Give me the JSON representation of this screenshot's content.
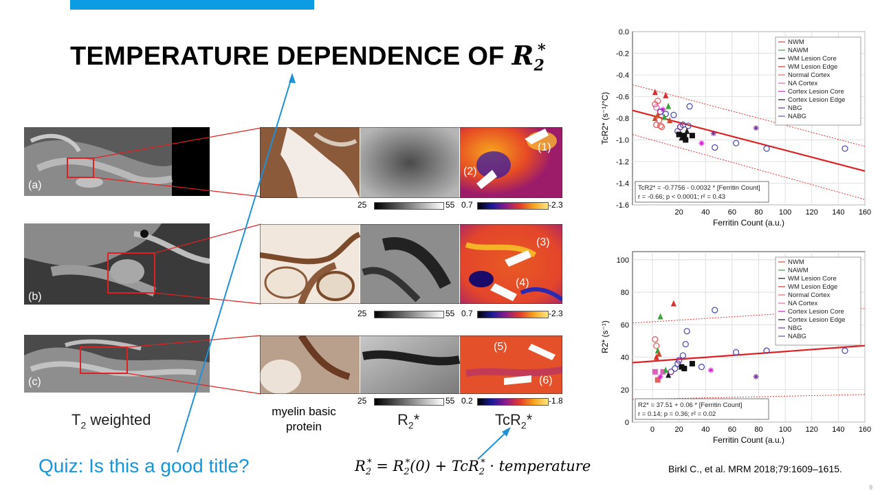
{
  "slide": {
    "title_text": "TEMPERATURE DEPENDENCE OF",
    "title_symbol": "R",
    "title_sub": "2",
    "title_sup": "*",
    "quiz": "Quiz: Is this a good title?",
    "citation": "Birkl C., et al. MRM 2018;79:1609–1615.",
    "page_number": "9",
    "formula": {
      "lhs": "R",
      "lhs_sub": "2",
      "lhs_sup": "*",
      "eq": " = ",
      "r0": "R",
      "r0_sub": "2",
      "r0_sup": "*",
      "r0_arg": "(0) + ",
      "tc": "TcR",
      "tc_sub": "2",
      "tc_sup": "*",
      "tail": " · temperature"
    }
  },
  "figure": {
    "row_labels": [
      "(a)",
      "(b)",
      "(c)"
    ],
    "col_t2": "T",
    "col_t2_sub": "2",
    "col_t2_rest": " weighted",
    "col_mbp": [
      "myelin basic",
      "protein"
    ],
    "col_r2": "R",
    "col_r2_sub": "2",
    "col_r2_sup": "*",
    "col_tcr2": "TcR",
    "col_tcr2_sub": "2",
    "col_tcr2_sup": "*",
    "arrow_labels": [
      "(1)",
      "(2)",
      "(3)",
      "(4)",
      "(5)",
      "(6)"
    ],
    "scales": [
      {
        "gray_min": "25",
        "gray_max": "55",
        "color_min": "0.7",
        "color_max": "-2.3"
      },
      {
        "gray_min": "25",
        "gray_max": "55",
        "color_min": "0.7",
        "color_max": "-2.3"
      },
      {
        "gray_min": "25",
        "gray_max": "55",
        "color_min": "0.2",
        "color_max": "-1.8"
      }
    ]
  },
  "chart_data": [
    {
      "type": "scatter",
      "title": "",
      "xlabel": "Ferritin Count (a.u.)",
      "ylabel": "TcR2* (s⁻¹/°C)",
      "xlim": [
        -15,
        160
      ],
      "ylim": [
        -1.6,
        0.0
      ],
      "xticks": [
        "20",
        "40",
        "60",
        "80",
        "100",
        "120",
        "140",
        "160"
      ],
      "yticks": [
        "0.0",
        "-0.2",
        "-0.4",
        "-0.6",
        "-0.8",
        "-1.0",
        "-1.2",
        "-1.4",
        "-1.6"
      ],
      "legend": [
        "NWM",
        "NAWM",
        "WM Lesion Core",
        "WM Lesion Edge",
        "Normal Cortex",
        "NA Cortex",
        "Cortex Lesion Core",
        "Cortex Lesion Edge",
        "NBG",
        "NABG"
      ],
      "fit": {
        "intercept": -0.7756,
        "slope": -0.0032
      },
      "ci_upper": [
        [
          -15,
          -0.49
        ],
        [
          160,
          -1.06
        ]
      ],
      "ci_lower": [
        [
          -15,
          -0.95
        ],
        [
          160,
          -1.55
        ]
      ],
      "annotation": [
        "TcR2* = -0.7756 - 0.0032 * [Ferritin Count]",
        "r = -0.66; p < 0.0001; r² = 0.43"
      ],
      "points": [
        {
          "x": 2,
          "y": -0.56,
          "g": "WM Lesion Edge",
          "c": "#d92e2e",
          "m": "tri"
        },
        {
          "x": 10,
          "y": -0.59,
          "g": "WM Lesion Edge",
          "c": "#d92e2e",
          "m": "tri"
        },
        {
          "x": 4,
          "y": -0.64,
          "g": "Normal Cortex",
          "c": "#e66060",
          "m": "circle"
        },
        {
          "x": 2,
          "y": -0.67,
          "g": "Normal Cortex",
          "c": "#e66060",
          "m": "circle"
        },
        {
          "x": 3,
          "y": -0.7,
          "g": "NA Cortex",
          "c": "#e060c0",
          "m": "circle"
        },
        {
          "x": 12,
          "y": -0.69,
          "g": "NAWM",
          "c": "#3aa33a",
          "m": "tri"
        },
        {
          "x": 8,
          "y": -0.72,
          "g": "Cortex Lesion Core",
          "c": "#d020d0",
          "m": "star"
        },
        {
          "x": 6,
          "y": -0.74,
          "g": "NBG",
          "c": "#7a2aa0",
          "m": "circle"
        },
        {
          "x": 10,
          "y": -0.76,
          "g": "NABG",
          "c": "#5050b0",
          "m": "circle"
        },
        {
          "x": 4,
          "y": -0.77,
          "g": "NWM",
          "c": "#cc4b2c",
          "m": "tri"
        },
        {
          "x": 9,
          "y": -0.79,
          "g": "NAWM",
          "c": "#3aa33a",
          "m": "tri"
        },
        {
          "x": 2,
          "y": -0.8,
          "g": "NWM",
          "c": "#cc4b2c",
          "m": "tri"
        },
        {
          "x": 5,
          "y": -0.82,
          "g": "Normal Cortex",
          "c": "#e66060",
          "m": "circle"
        },
        {
          "x": 3,
          "y": -0.86,
          "g": "Normal Cortex",
          "c": "#e66060",
          "m": "circle"
        },
        {
          "x": 6,
          "y": -0.87,
          "g": "Normal Cortex",
          "c": "#e66060",
          "m": "circle"
        },
        {
          "x": 7,
          "y": -0.88,
          "g": "Normal Cortex",
          "c": "#e66060",
          "m": "circle"
        },
        {
          "x": 13,
          "y": -0.82,
          "g": "NWM",
          "c": "#cc4b2c",
          "m": "tri"
        },
        {
          "x": 16,
          "y": -0.77,
          "g": "NABG",
          "c": "#5050b0",
          "m": "circle"
        },
        {
          "x": 19,
          "y": -0.92,
          "g": "NABG",
          "c": "#5050b0",
          "m": "circle"
        },
        {
          "x": 21,
          "y": -0.88,
          "g": "NBG",
          "c": "#7a2aa0",
          "m": "circle"
        },
        {
          "x": 23,
          "y": -0.86,
          "g": "NABG",
          "c": "#5050b0",
          "m": "circle"
        },
        {
          "x": 27,
          "y": -0.87,
          "g": "NABG",
          "c": "#5050b0",
          "m": "circle"
        },
        {
          "x": 28,
          "y": -0.69,
          "g": "NABG",
          "c": "#5050b0",
          "m": "circle"
        },
        {
          "x": 20,
          "y": -0.95,
          "g": "Cortex Lesion Edge",
          "c": "#111111",
          "m": "square"
        },
        {
          "x": 22,
          "y": -0.98,
          "g": "WM Lesion Core",
          "c": "#1a1a1a",
          "m": "tri"
        },
        {
          "x": 24,
          "y": -0.96,
          "g": "Cortex Lesion Edge",
          "c": "#111111",
          "m": "square"
        },
        {
          "x": 25,
          "y": -1.0,
          "g": "Cortex Lesion Edge",
          "c": "#111111",
          "m": "square"
        },
        {
          "x": 26,
          "y": -0.92,
          "g": "WM Lesion Core",
          "c": "#1a1a1a",
          "m": "tri"
        },
        {
          "x": 30,
          "y": -0.96,
          "g": "Cortex Lesion Edge",
          "c": "#111111",
          "m": "square"
        },
        {
          "x": 37,
          "y": -1.03,
          "g": "Cortex Lesion Core",
          "c": "#d020d0",
          "m": "star"
        },
        {
          "x": 47,
          "y": -1.07,
          "g": "NABG",
          "c": "#5050b0",
          "m": "circle"
        },
        {
          "x": 46,
          "y": -0.94,
          "g": "NBG",
          "c": "#7a2aa0",
          "m": "star"
        },
        {
          "x": 63,
          "y": -1.03,
          "g": "NABG",
          "c": "#5050b0",
          "m": "circle"
        },
        {
          "x": 78,
          "y": -0.89,
          "g": "NBG",
          "c": "#7a2aa0",
          "m": "star"
        },
        {
          "x": 86,
          "y": -1.08,
          "g": "NABG",
          "c": "#5050b0",
          "m": "circle"
        },
        {
          "x": 145,
          "y": -1.08,
          "g": "NABG",
          "c": "#5050b0",
          "m": "circle"
        }
      ]
    },
    {
      "type": "scatter",
      "title": "",
      "xlabel": "Ferritin Count (a.u.)",
      "ylabel": "R2* (s⁻¹)",
      "xlim": [
        -15,
        160
      ],
      "ylim": [
        0,
        105
      ],
      "xticks": [
        "0",
        "20",
        "40",
        "60",
        "80",
        "100",
        "120",
        "140",
        "160"
      ],
      "yticks": [
        "0",
        "20",
        "40",
        "60",
        "80",
        "100"
      ],
      "legend": [
        "NWM",
        "NAWM",
        "WM Lesion Core",
        "WM Lesion Edge",
        "Normal Cortex",
        "NA Cortex",
        "Cortex Lesion Core",
        "Cortex Lesion Edge",
        "NBG",
        "NABG"
      ],
      "fit": {
        "intercept": 37.51,
        "slope": 0.06
      },
      "ci_upper": [
        [
          -15,
          61
        ],
        [
          160,
          70
        ]
      ],
      "ci_lower": [
        [
          -15,
          14
        ],
        [
          160,
          17
        ]
      ],
      "annotation": [
        "R2* = 37.51 + 0.06 * [Ferritin Count]",
        "r = 0.14; p = 0.36; r² = 0.02"
      ],
      "points": [
        {
          "x": 2,
          "y": 51,
          "g": "Normal Cortex",
          "c": "#e66060",
          "m": "circle"
        },
        {
          "x": 3,
          "y": 47,
          "g": "Normal Cortex",
          "c": "#e66060",
          "m": "circle"
        },
        {
          "x": 4,
          "y": 44,
          "g": "NAWM",
          "c": "#3aa33a",
          "m": "tri"
        },
        {
          "x": 5,
          "y": 42,
          "g": "NWM",
          "c": "#cc4b2c",
          "m": "tri"
        },
        {
          "x": 3,
          "y": 40,
          "g": "WM Lesion Edge",
          "c": "#d92e2e",
          "m": "tri"
        },
        {
          "x": 6,
          "y": 65,
          "g": "NAWM",
          "c": "#3aa33a",
          "m": "tri"
        },
        {
          "x": 16,
          "y": 73,
          "g": "WM Lesion Edge",
          "c": "#d92e2e",
          "m": "tri"
        },
        {
          "x": 2,
          "y": 31,
          "g": "NA Cortex",
          "c": "#e060c0",
          "m": "square"
        },
        {
          "x": 4,
          "y": 26,
          "g": "Normal Cortex",
          "c": "#e66060",
          "m": "square"
        },
        {
          "x": 6,
          "y": 28,
          "g": "Cortex Lesion Core",
          "c": "#d020d0",
          "m": "star"
        },
        {
          "x": 8,
          "y": 31,
          "g": "NA Cortex",
          "c": "#e060c0",
          "m": "square"
        },
        {
          "x": 10,
          "y": 32,
          "g": "NAWM",
          "c": "#3aa33a",
          "m": "tri"
        },
        {
          "x": 12,
          "y": 29,
          "g": "WM Lesion Core",
          "c": "#1a1a1a",
          "m": "tri"
        },
        {
          "x": 14,
          "y": 31,
          "g": "NBG",
          "c": "#7a2aa0",
          "m": "circle"
        },
        {
          "x": 17,
          "y": 33,
          "g": "NABG",
          "c": "#5050b0",
          "m": "circle"
        },
        {
          "x": 19,
          "y": 36,
          "g": "NABG",
          "c": "#5050b0",
          "m": "circle"
        },
        {
          "x": 20,
          "y": 38,
          "g": "NBG",
          "c": "#7a2aa0",
          "m": "circle"
        },
        {
          "x": 22,
          "y": 34,
          "g": "Cortex Lesion Edge",
          "c": "#111111",
          "m": "square"
        },
        {
          "x": 24,
          "y": 33,
          "g": "Cortex Lesion Edge",
          "c": "#111111",
          "m": "square"
        },
        {
          "x": 23,
          "y": 41,
          "g": "NABG",
          "c": "#5050b0",
          "m": "circle"
        },
        {
          "x": 25,
          "y": 48,
          "g": "NABG",
          "c": "#5050b0",
          "m": "circle"
        },
        {
          "x": 26,
          "y": 56,
          "g": "NABG",
          "c": "#5050b0",
          "m": "circle"
        },
        {
          "x": 30,
          "y": 36,
          "g": "Cortex Lesion Edge",
          "c": "#111111",
          "m": "square"
        },
        {
          "x": 37,
          "y": 34,
          "g": "NABG",
          "c": "#5050b0",
          "m": "circle"
        },
        {
          "x": 44,
          "y": 32,
          "g": "Cortex Lesion Core",
          "c": "#d020d0",
          "m": "star"
        },
        {
          "x": 47,
          "y": 69,
          "g": "NABG",
          "c": "#5050b0",
          "m": "circle"
        },
        {
          "x": 63,
          "y": 43,
          "g": "NABG",
          "c": "#5050b0",
          "m": "circle"
        },
        {
          "x": 78,
          "y": 28,
          "g": "NBG",
          "c": "#7a2aa0",
          "m": "star"
        },
        {
          "x": 86,
          "y": 44,
          "g": "NABG",
          "c": "#5050b0",
          "m": "circle"
        },
        {
          "x": 145,
          "y": 44,
          "g": "NABG",
          "c": "#5050b0",
          "m": "circle"
        }
      ]
    }
  ]
}
